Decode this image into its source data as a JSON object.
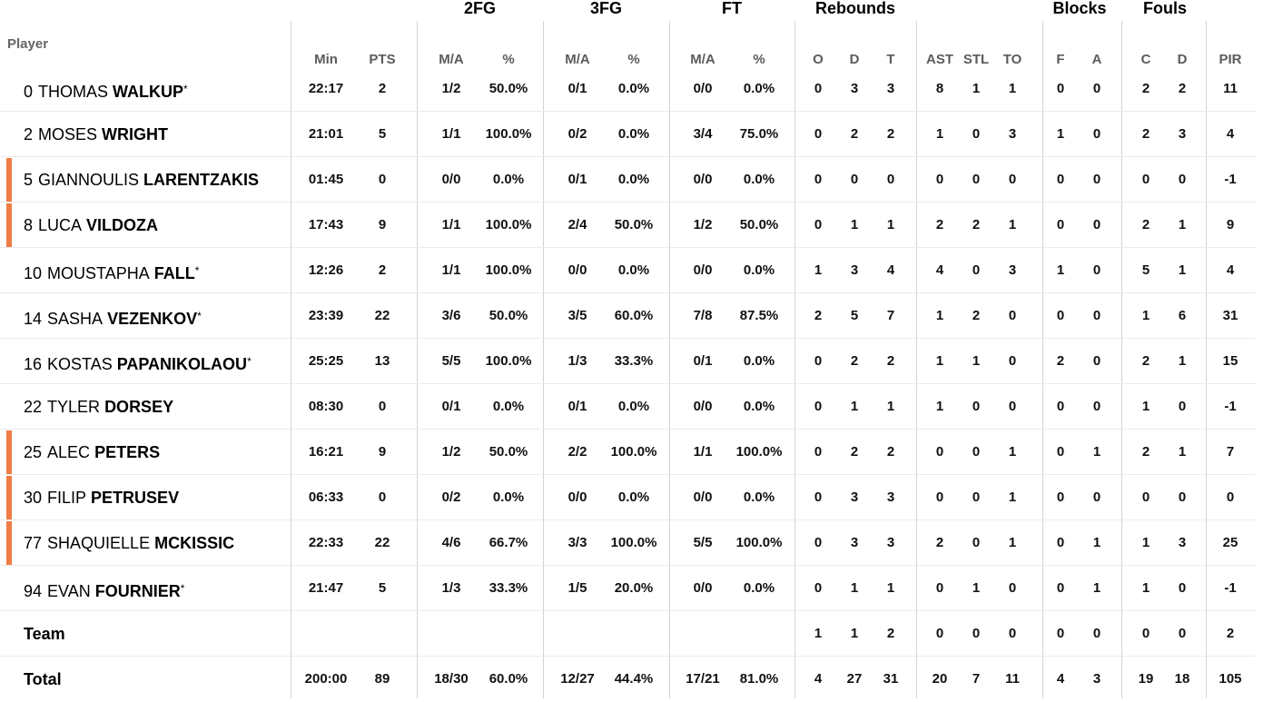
{
  "groups": {
    "fg2": "2FG",
    "fg3": "3FG",
    "ft": "FT",
    "reb": "Rebounds",
    "blk": "Blocks",
    "fouls": "Fouls"
  },
  "player_header": "Player",
  "columns": {
    "min": "Min",
    "pts": "PTS",
    "fg2_ma": "M/A",
    "fg2_pct": "%",
    "fg3_ma": "M/A",
    "fg3_pct": "%",
    "ft_ma": "M/A",
    "ft_pct": "%",
    "o": "O",
    "d": "D",
    "t": "T",
    "ast": "AST",
    "stl": "STL",
    "to": "TO",
    "f": "F",
    "a": "A",
    "c": "C",
    "fd": "D",
    "pir": "PIR"
  },
  "star_glyph": "*",
  "accent_color": "#f27c45",
  "players": [
    {
      "num": "0",
      "first": "THOMAS",
      "last": "WALKUP",
      "starter": true,
      "marker": false,
      "min": "22:17",
      "pts": "2",
      "fg2_ma": "1/2",
      "fg2_pct": "50.0%",
      "fg3_ma": "0/1",
      "fg3_pct": "0.0%",
      "ft_ma": "0/0",
      "ft_pct": "0.0%",
      "o": "0",
      "d": "3",
      "t": "3",
      "ast": "8",
      "stl": "1",
      "to": "1",
      "f": "0",
      "a": "0",
      "c": "2",
      "fd": "2",
      "pir": "11"
    },
    {
      "num": "2",
      "first": "MOSES",
      "last": "WRIGHT",
      "starter": false,
      "marker": false,
      "min": "21:01",
      "pts": "5",
      "fg2_ma": "1/1",
      "fg2_pct": "100.0%",
      "fg3_ma": "0/2",
      "fg3_pct": "0.0%",
      "ft_ma": "3/4",
      "ft_pct": "75.0%",
      "o": "0",
      "d": "2",
      "t": "2",
      "ast": "1",
      "stl": "0",
      "to": "3",
      "f": "1",
      "a": "0",
      "c": "2",
      "fd": "3",
      "pir": "4"
    },
    {
      "num": "5",
      "first": "GIANNOULIS",
      "last": "LARENTZAKIS",
      "starter": false,
      "marker": true,
      "min": "01:45",
      "pts": "0",
      "fg2_ma": "0/0",
      "fg2_pct": "0.0%",
      "fg3_ma": "0/1",
      "fg3_pct": "0.0%",
      "ft_ma": "0/0",
      "ft_pct": "0.0%",
      "o": "0",
      "d": "0",
      "t": "0",
      "ast": "0",
      "stl": "0",
      "to": "0",
      "f": "0",
      "a": "0",
      "c": "0",
      "fd": "0",
      "pir": "-1"
    },
    {
      "num": "8",
      "first": "LUCA",
      "last": "VILDOZA",
      "starter": false,
      "marker": true,
      "min": "17:43",
      "pts": "9",
      "fg2_ma": "1/1",
      "fg2_pct": "100.0%",
      "fg3_ma": "2/4",
      "fg3_pct": "50.0%",
      "ft_ma": "1/2",
      "ft_pct": "50.0%",
      "o": "0",
      "d": "1",
      "t": "1",
      "ast": "2",
      "stl": "2",
      "to": "1",
      "f": "0",
      "a": "0",
      "c": "2",
      "fd": "1",
      "pir": "9"
    },
    {
      "num": "10",
      "first": "MOUSTAPHA",
      "last": "FALL",
      "starter": true,
      "marker": false,
      "min": "12:26",
      "pts": "2",
      "fg2_ma": "1/1",
      "fg2_pct": "100.0%",
      "fg3_ma": "0/0",
      "fg3_pct": "0.0%",
      "ft_ma": "0/0",
      "ft_pct": "0.0%",
      "o": "1",
      "d": "3",
      "t": "4",
      "ast": "4",
      "stl": "0",
      "to": "3",
      "f": "1",
      "a": "0",
      "c": "5",
      "fd": "1",
      "pir": "4"
    },
    {
      "num": "14",
      "first": "SASHA",
      "last": "VEZENKOV",
      "starter": true,
      "marker": false,
      "min": "23:39",
      "pts": "22",
      "fg2_ma": "3/6",
      "fg2_pct": "50.0%",
      "fg3_ma": "3/5",
      "fg3_pct": "60.0%",
      "ft_ma": "7/8",
      "ft_pct": "87.5%",
      "o": "2",
      "d": "5",
      "t": "7",
      "ast": "1",
      "stl": "2",
      "to": "0",
      "f": "0",
      "a": "0",
      "c": "1",
      "fd": "6",
      "pir": "31"
    },
    {
      "num": "16",
      "first": "KOSTAS",
      "last": "PAPANIKOLAOU",
      "starter": true,
      "marker": false,
      "min": "25:25",
      "pts": "13",
      "fg2_ma": "5/5",
      "fg2_pct": "100.0%",
      "fg3_ma": "1/3",
      "fg3_pct": "33.3%",
      "ft_ma": "0/1",
      "ft_pct": "0.0%",
      "o": "0",
      "d": "2",
      "t": "2",
      "ast": "1",
      "stl": "1",
      "to": "0",
      "f": "2",
      "a": "0",
      "c": "2",
      "fd": "1",
      "pir": "15"
    },
    {
      "num": "22",
      "first": "TYLER",
      "last": "DORSEY",
      "starter": false,
      "marker": false,
      "min": "08:30",
      "pts": "0",
      "fg2_ma": "0/1",
      "fg2_pct": "0.0%",
      "fg3_ma": "0/1",
      "fg3_pct": "0.0%",
      "ft_ma": "0/0",
      "ft_pct": "0.0%",
      "o": "0",
      "d": "1",
      "t": "1",
      "ast": "1",
      "stl": "0",
      "to": "0",
      "f": "0",
      "a": "0",
      "c": "1",
      "fd": "0",
      "pir": "-1"
    },
    {
      "num": "25",
      "first": "ALEC",
      "last": "PETERS",
      "starter": false,
      "marker": true,
      "min": "16:21",
      "pts": "9",
      "fg2_ma": "1/2",
      "fg2_pct": "50.0%",
      "fg3_ma": "2/2",
      "fg3_pct": "100.0%",
      "ft_ma": "1/1",
      "ft_pct": "100.0%",
      "o": "0",
      "d": "2",
      "t": "2",
      "ast": "0",
      "stl": "0",
      "to": "1",
      "f": "0",
      "a": "1",
      "c": "2",
      "fd": "1",
      "pir": "7"
    },
    {
      "num": "30",
      "first": "FILIP",
      "last": "PETRUSEV",
      "starter": false,
      "marker": true,
      "min": "06:33",
      "pts": "0",
      "fg2_ma": "0/2",
      "fg2_pct": "0.0%",
      "fg3_ma": "0/0",
      "fg3_pct": "0.0%",
      "ft_ma": "0/0",
      "ft_pct": "0.0%",
      "o": "0",
      "d": "3",
      "t": "3",
      "ast": "0",
      "stl": "0",
      "to": "1",
      "f": "0",
      "a": "0",
      "c": "0",
      "fd": "0",
      "pir": "0"
    },
    {
      "num": "77",
      "first": "SHAQUIELLE",
      "last": "MCKISSIC",
      "starter": false,
      "marker": true,
      "min": "22:33",
      "pts": "22",
      "fg2_ma": "4/6",
      "fg2_pct": "66.7%",
      "fg3_ma": "3/3",
      "fg3_pct": "100.0%",
      "ft_ma": "5/5",
      "ft_pct": "100.0%",
      "o": "0",
      "d": "3",
      "t": "3",
      "ast": "2",
      "stl": "0",
      "to": "1",
      "f": "0",
      "a": "1",
      "c": "1",
      "fd": "3",
      "pir": "25"
    },
    {
      "num": "94",
      "first": "EVAN",
      "last": "FOURNIER",
      "starter": true,
      "marker": false,
      "min": "21:47",
      "pts": "5",
      "fg2_ma": "1/3",
      "fg2_pct": "33.3%",
      "fg3_ma": "1/5",
      "fg3_pct": "20.0%",
      "ft_ma": "0/0",
      "ft_pct": "0.0%",
      "o": "0",
      "d": "1",
      "t": "1",
      "ast": "0",
      "stl": "1",
      "to": "0",
      "f": "0",
      "a": "1",
      "c": "1",
      "fd": "0",
      "pir": "-1"
    }
  ],
  "team_row": {
    "label": "Team",
    "o": "1",
    "d": "1",
    "t": "2",
    "ast": "0",
    "stl": "0",
    "to": "0",
    "f": "0",
    "a": "0",
    "c": "0",
    "fd": "0",
    "pir": "2"
  },
  "total_row": {
    "label": "Total",
    "min": "200:00",
    "pts": "89",
    "fg2_ma": "18/30",
    "fg2_pct": "60.0%",
    "fg3_ma": "12/27",
    "fg3_pct": "44.4%",
    "ft_ma": "17/21",
    "ft_pct": "81.0%",
    "o": "4",
    "d": "27",
    "t": "31",
    "ast": "20",
    "stl": "7",
    "to": "11",
    "f": "4",
    "a": "3",
    "c": "19",
    "fd": "18",
    "pir": "105"
  }
}
